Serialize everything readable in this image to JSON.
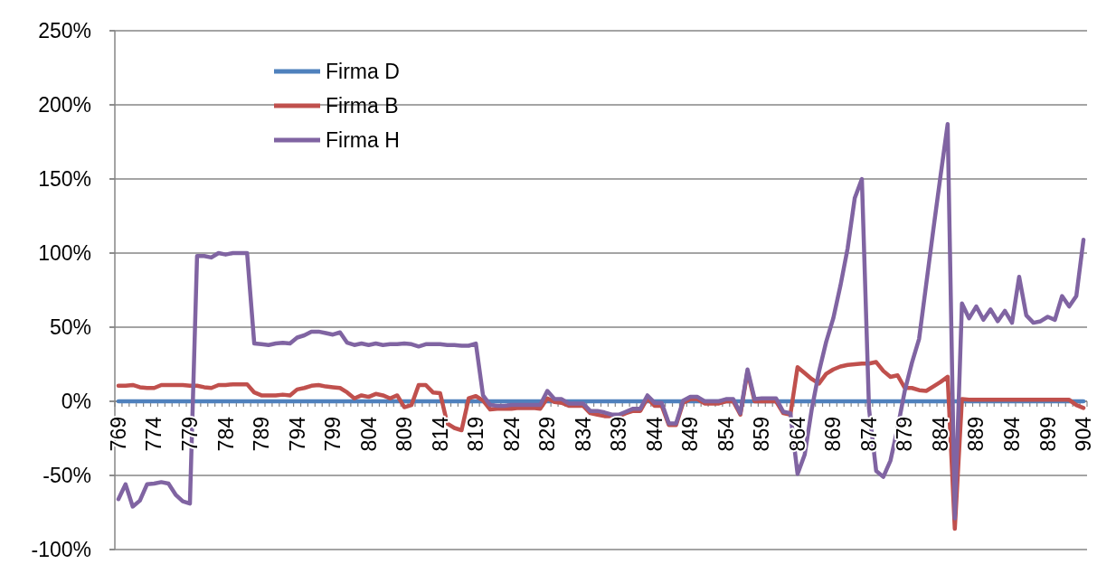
{
  "chart_data": {
    "type": "line",
    "categories": [
      "769",
      null,
      null,
      null,
      null,
      "774",
      null,
      null,
      null,
      null,
      "779",
      null,
      null,
      null,
      null,
      "784",
      null,
      null,
      null,
      null,
      "789",
      null,
      null,
      null,
      null,
      "794",
      null,
      null,
      null,
      null,
      "799",
      null,
      null,
      null,
      null,
      "804",
      null,
      null,
      null,
      null,
      "809",
      null,
      null,
      null,
      null,
      "814",
      null,
      null,
      null,
      null,
      "819",
      null,
      null,
      null,
      null,
      "824",
      null,
      null,
      null,
      null,
      "829",
      null,
      null,
      null,
      null,
      "834",
      null,
      null,
      null,
      null,
      "839",
      null,
      null,
      null,
      null,
      "844",
      null,
      null,
      null,
      null,
      "849",
      null,
      null,
      null,
      null,
      "854",
      null,
      null,
      null,
      null,
      "859",
      null,
      null,
      null,
      null,
      "864",
      null,
      null,
      null,
      null,
      "869",
      null,
      null,
      null,
      null,
      "874",
      null,
      null,
      null,
      null,
      "879",
      null,
      null,
      null,
      null,
      "884",
      null,
      null,
      null,
      null,
      "889",
      null,
      null,
      null,
      null,
      "894",
      null,
      null,
      null,
      null,
      "899",
      null,
      null,
      null,
      null,
      "904"
    ],
    "series": [
      {
        "name": "Firma D",
        "color": "#4f81bd",
        "values": [
          0,
          0,
          0,
          0,
          0,
          0,
          0,
          0,
          0,
          0,
          0,
          0,
          0,
          0,
          0,
          0,
          0,
          0,
          0,
          0,
          0,
          0,
          0,
          0,
          0,
          0,
          0,
          0,
          0,
          0,
          0,
          0,
          0,
          0,
          0,
          0,
          0,
          0,
          0,
          0,
          0,
          0,
          0,
          0,
          0,
          0,
          0,
          0,
          0,
          0,
          0,
          0,
          0,
          0,
          0,
          0,
          0,
          0,
          0,
          0,
          0,
          0,
          0,
          0,
          0,
          0,
          0,
          0,
          0,
          0,
          0,
          0,
          0,
          0,
          0,
          0,
          0,
          0,
          0,
          0,
          0,
          0,
          0,
          0,
          0,
          0,
          0,
          0,
          0,
          0,
          0,
          0,
          0,
          0,
          0,
          0,
          0,
          0,
          0,
          0,
          0,
          0,
          0,
          0,
          0,
          0,
          0,
          0,
          0,
          0,
          0,
          0,
          0,
          0,
          0,
          0,
          0,
          0,
          0,
          0,
          0,
          0,
          0,
          0,
          0,
          0,
          0,
          0,
          0,
          0,
          0,
          0,
          0,
          0,
          0,
          0
        ]
      },
      {
        "name": "Firma B",
        "color": "#c0504d",
        "values": [
          10.5,
          10.5,
          11,
          9.5,
          9,
          9,
          11,
          11,
          11,
          11,
          10.5,
          10.5,
          9.5,
          9,
          11,
          11,
          11.5,
          11.5,
          11.5,
          6,
          4,
          4,
          4,
          4.5,
          4,
          8,
          9,
          10.5,
          11,
          10,
          9.5,
          9,
          6,
          2,
          4,
          3,
          5,
          4,
          2,
          4,
          -4,
          -2.5,
          11,
          11,
          6,
          5.5,
          -15,
          -18,
          -19.5,
          2,
          3.5,
          0.5,
          -5.5,
          -5,
          -5,
          -5,
          -4.5,
          -4.5,
          -4.5,
          -5,
          2,
          -0.5,
          -1,
          -3,
          -3,
          -3,
          -8,
          -9,
          -10,
          -10,
          -10,
          -8,
          -6.5,
          -6.5,
          2,
          -3,
          -3,
          -16,
          -16,
          -1,
          1.5,
          1.5,
          -1.5,
          -1.5,
          -1.5,
          0,
          0,
          -9,
          20,
          0,
          0,
          0,
          0,
          -8,
          -9,
          23,
          19,
          15,
          12,
          18.5,
          21.5,
          23.5,
          24.5,
          25,
          25.5,
          25.5,
          26.5,
          20.5,
          16.5,
          17.5,
          9,
          9,
          7.5,
          7,
          10,
          13,
          16.5,
          -86,
          1.5,
          1,
          1,
          1,
          1,
          1,
          1,
          1,
          1,
          1,
          1,
          1,
          1,
          1,
          1,
          1,
          -2.5,
          -4.5
        ]
      },
      {
        "name": "Firma H",
        "color": "#8064a2",
        "values": [
          -66,
          -56,
          -71,
          -67,
          -56,
          -55.5,
          -54.5,
          -55.5,
          -63,
          -67.5,
          -69,
          98,
          98,
          97,
          100,
          99,
          100,
          100,
          100,
          39,
          38.5,
          38,
          39,
          39.5,
          39,
          43,
          44.5,
          47,
          47,
          46,
          45,
          46.5,
          39.5,
          38,
          39,
          38,
          39,
          38,
          38.5,
          38.5,
          39,
          38.5,
          37,
          38.5,
          38.5,
          38.5,
          38,
          38,
          37.5,
          37.5,
          39,
          4,
          -2.5,
          -3,
          -3,
          -2.5,
          -2.5,
          -2.5,
          -2.5,
          -2.5,
          7,
          1.5,
          1.5,
          -1.5,
          -1.5,
          -1.5,
          -6.5,
          -6.5,
          -7.5,
          -9,
          -9,
          -7,
          -5,
          -5,
          4,
          -1,
          -1,
          -15,
          -15,
          0.5,
          3,
          3,
          0,
          0,
          0,
          1.5,
          1.5,
          -8,
          21.5,
          1.5,
          2,
          2,
          2,
          -7,
          -8,
          -49,
          -36,
          -5,
          20,
          40,
          56,
          78,
          103,
          137,
          150,
          -5,
          -47,
          -51,
          -40,
          -18,
          7,
          26,
          42,
          79,
          116,
          152,
          187,
          -79,
          66,
          56,
          64,
          55,
          62,
          54,
          61,
          53,
          84,
          58,
          53,
          54,
          57,
          55,
          71,
          64,
          71,
          109
        ]
      }
    ],
    "ylim": [
      -100,
      250
    ],
    "yticks": [
      {
        "value": -100,
        "label": "-100%"
      },
      {
        "value": -50,
        "label": "-50%"
      },
      {
        "value": 0,
        "label": "0%"
      },
      {
        "value": 50,
        "label": "50%"
      },
      {
        "value": 100,
        "label": "100%"
      },
      {
        "value": 150,
        "label": "150%"
      },
      {
        "value": 200,
        "label": "200%"
      },
      {
        "value": 250,
        "label": "250%"
      }
    ],
    "grid": "y",
    "legend": "top left",
    "line_style": "solid"
  }
}
